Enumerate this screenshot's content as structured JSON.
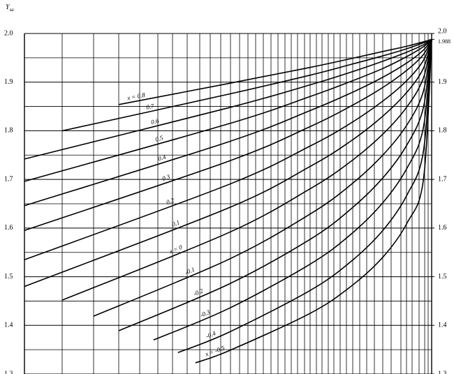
{
  "chart_data": {
    "type": "line",
    "y_label": "Y",
    "y_label_subscript": "sa",
    "color": "#000000",
    "xlim": [
      0,
      100
    ],
    "ylim": [
      1.3,
      2.0
    ],
    "yticks": [
      {
        "value": 2.0,
        "label": "2.0"
      },
      1.9,
      1.8,
      1.7,
      1.6,
      1.5,
      1.4,
      1.3
    ],
    "yminor": [
      1.95,
      1.85,
      1.75,
      1.65,
      1.55,
      1.45,
      1.35
    ],
    "y2lim": [
      1.3,
      2.0
    ],
    "y2ticks": [
      {
        "value": 2.0,
        "label": "2.0"
      },
      1.988,
      1.9,
      1.8,
      1.7,
      1.6,
      1.5,
      1.4,
      1.3
    ],
    "grid": true,
    "series": [
      {
        "name": "x = 0.8",
        "x": [
          23.2,
          50,
          70,
          80,
          88,
          94,
          98,
          100
        ],
        "values": [
          1.854,
          1.897,
          1.93,
          1.948,
          1.963,
          1.974,
          1.983,
          1.988
        ]
      },
      {
        "name": "0.7",
        "x": [
          9.3,
          50,
          70,
          80,
          88,
          94,
          98,
          100
        ],
        "values": [
          1.8,
          1.875,
          1.914,
          1.936,
          1.954,
          1.969,
          1.981,
          1.988
        ]
      },
      {
        "name": "0.6",
        "x": [
          0,
          50,
          70,
          80,
          88,
          94,
          98,
          100
        ],
        "values": [
          1.742,
          1.847,
          1.894,
          1.92,
          1.943,
          1.962,
          1.977,
          1.988
        ]
      },
      {
        "name": "0.5",
        "x": [
          0,
          50,
          70,
          80,
          88,
          94,
          98,
          100
        ],
        "values": [
          1.696,
          1.814,
          1.87,
          1.901,
          1.928,
          1.953,
          1.973,
          1.988
        ]
      },
      {
        "name": "0.4",
        "x": [
          0,
          50,
          70,
          80,
          88,
          94,
          98,
          100
        ],
        "values": [
          1.646,
          1.777,
          1.841,
          1.877,
          1.91,
          1.94,
          1.966,
          1.988
        ]
      },
      {
        "name": "0.3",
        "x": [
          0,
          50,
          70,
          80,
          88,
          94,
          98,
          100
        ],
        "values": [
          1.595,
          1.737,
          1.808,
          1.85,
          1.889,
          1.925,
          1.957,
          1.988
        ]
      },
      {
        "name": "0.2",
        "x": [
          0,
          50,
          70,
          80,
          88,
          94,
          98,
          100
        ],
        "values": [
          1.535,
          1.689,
          1.768,
          1.815,
          1.861,
          1.904,
          1.945,
          1.988
        ]
      },
      {
        "name": "0.1",
        "x": [
          0,
          50,
          70,
          80,
          88,
          94,
          98,
          100
        ],
        "values": [
          1.48,
          1.641,
          1.726,
          1.778,
          1.83,
          1.88,
          1.929,
          1.988
        ]
      },
      {
        "name": "x = 0",
        "x": [
          9.3,
          50,
          70,
          80,
          88,
          94,
          98,
          100
        ],
        "values": [
          1.452,
          1.59,
          1.68,
          1.736,
          1.793,
          1.85,
          1.909,
          1.988
        ]
      },
      {
        "name": "-0.1",
        "x": [
          17,
          50,
          70,
          80,
          88,
          94,
          98,
          100
        ],
        "values": [
          1.419,
          1.535,
          1.628,
          1.688,
          1.75,
          1.813,
          1.882,
          1.988
        ]
      },
      {
        "name": "-0.2",
        "x": [
          23.2,
          50,
          70,
          80,
          88,
          94,
          98,
          100
        ],
        "values": [
          1.389,
          1.484,
          1.576,
          1.638,
          1.703,
          1.772,
          1.849,
          1.988
        ]
      },
      {
        "name": "-0.3",
        "x": [
          31.7,
          50,
          70,
          80,
          88,
          94,
          98,
          100
        ],
        "values": [
          1.37,
          1.434,
          1.525,
          1.586,
          1.652,
          1.724,
          1.808,
          1.988
        ]
      },
      {
        "name": "-0.4",
        "x": [
          37.7,
          50,
          70,
          80,
          88,
          94,
          98,
          100
        ],
        "values": [
          1.344,
          1.385,
          1.471,
          1.53,
          1.595,
          1.669,
          1.759,
          1.988
        ]
      },
      {
        "name": "x = -0.5",
        "x": [
          42,
          50,
          70,
          80,
          88,
          94,
          98,
          100
        ],
        "values": [
          1.323,
          1.347,
          1.424,
          1.479,
          1.54,
          1.611,
          1.701,
          1.988
        ]
      }
    ]
  }
}
